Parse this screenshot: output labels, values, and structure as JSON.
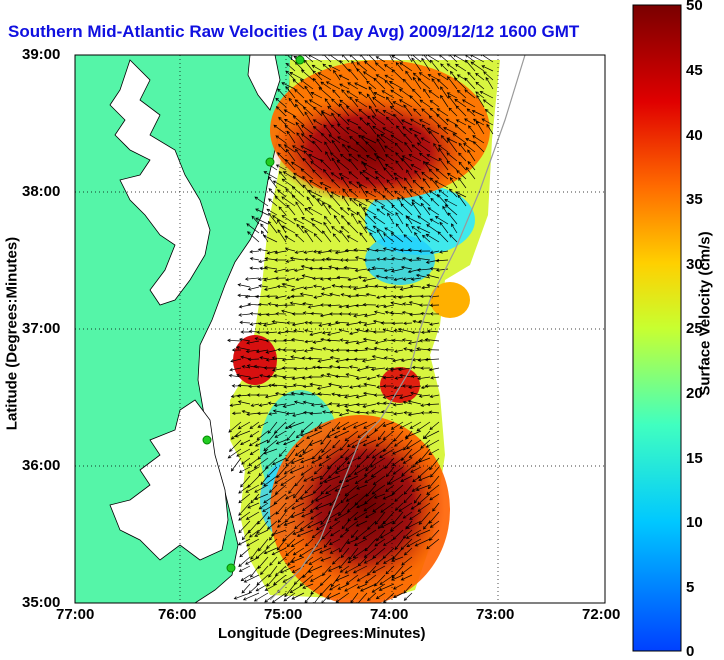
{
  "title": "Southern Mid-Atlantic Raw Velocities (1 Day Avg) 2009/12/12 1600 GMT",
  "xlabel": "Longitude (Degrees:Minutes)",
  "ylabel": "Latitude (Degrees:Minutes)",
  "x_ticks": [
    "77:00",
    "76:00",
    "75:00",
    "74:00",
    "73:00",
    "72:00"
  ],
  "y_ticks": [
    "39:00",
    "38:00",
    "37:00",
    "36:00",
    "35:00"
  ],
  "colorbar": {
    "label": "Surface Velocity (cm/s)",
    "ticks": [
      "50",
      "45",
      "40",
      "35",
      "30",
      "25",
      "20",
      "15",
      "10",
      "5",
      "0"
    ],
    "range": [
      0,
      50
    ],
    "colors": [
      "#0040ff",
      "#00c0ff",
      "#40ffc0",
      "#c0ff40",
      "#ffd000",
      "#ff6000",
      "#e00000",
      "#800000"
    ]
  },
  "colors": {
    "land": "#55f5a8",
    "title": "#1010e0",
    "station": "#22cc22"
  }
}
